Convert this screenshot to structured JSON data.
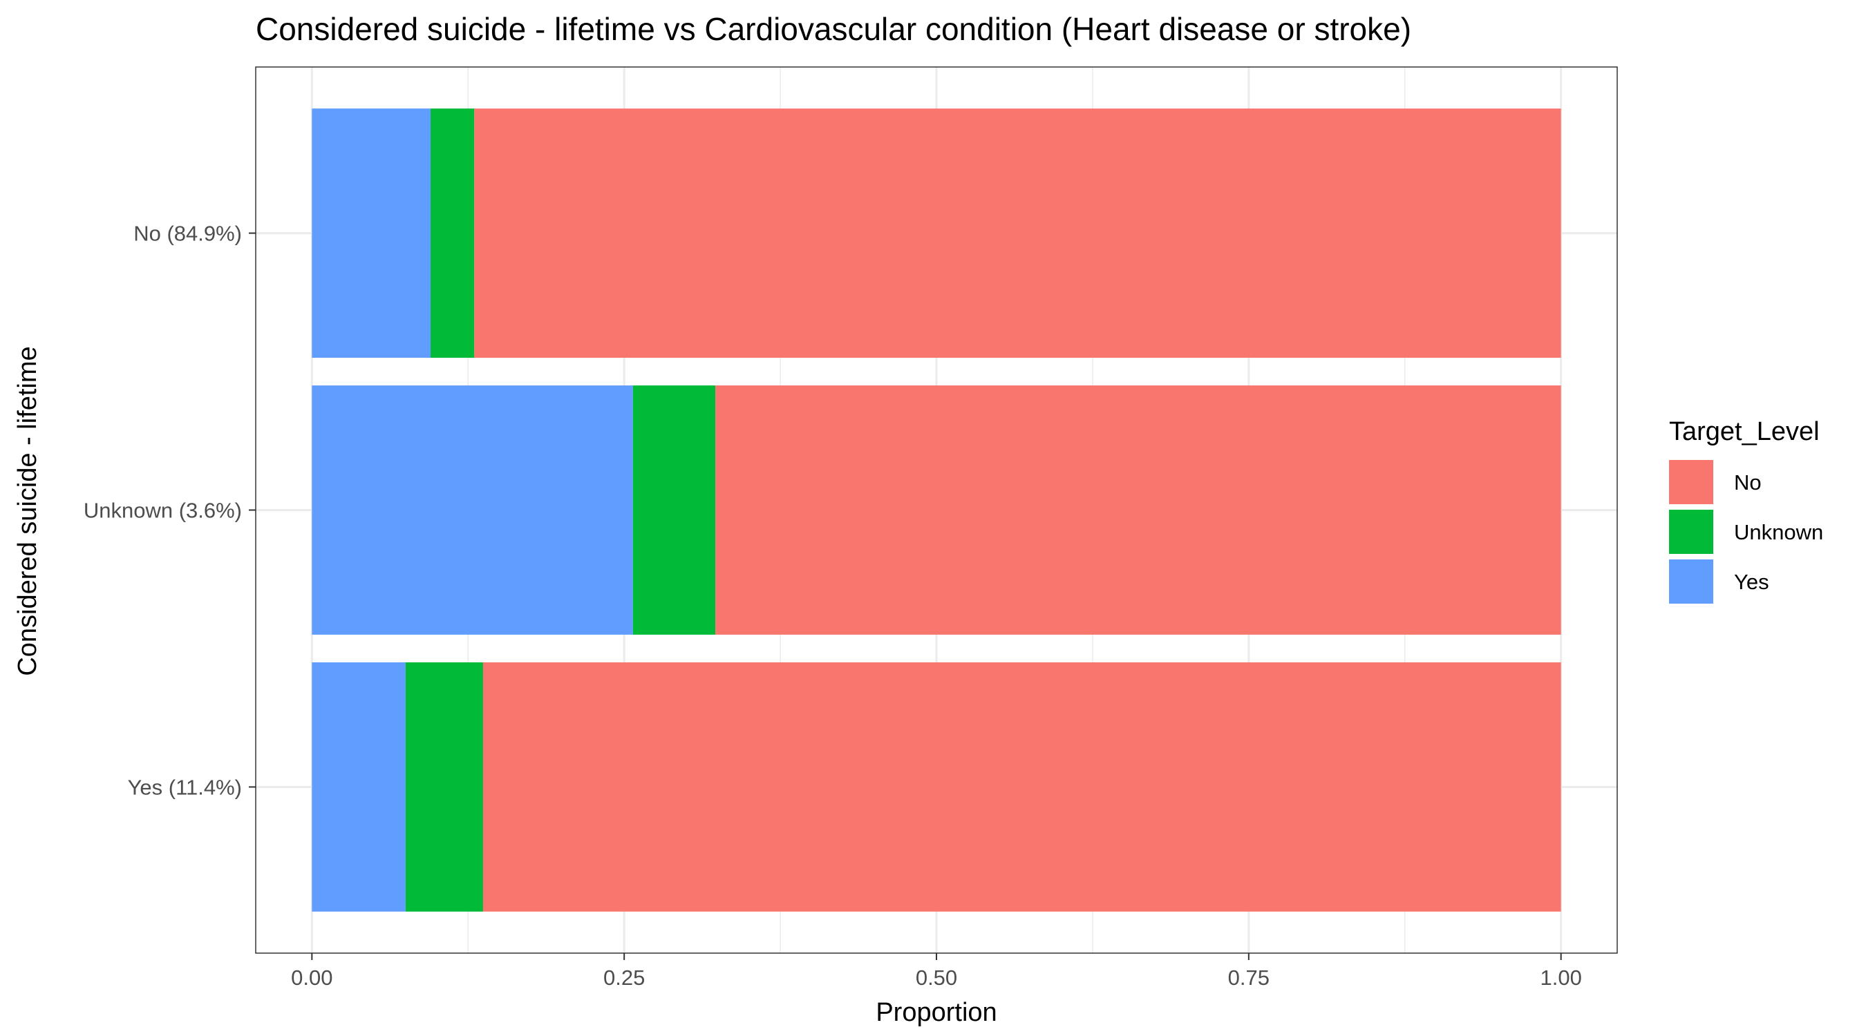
{
  "chart_data": {
    "type": "bar",
    "orientation": "horizontal",
    "stacked": "proportion",
    "title": "Considered suicide - lifetime vs Cardiovascular condition (Heart disease or stroke)",
    "xlabel": "Proportion",
    "ylabel": "Considered suicide - lifetime",
    "xlim": [
      0,
      1
    ],
    "x_ticks": [
      "0.00",
      "0.25",
      "0.50",
      "0.75",
      "1.00"
    ],
    "categories": [
      "Yes (11.4%)",
      "Unknown (3.6%)",
      "No (84.9%)"
    ],
    "series": [
      {
        "name": "Yes",
        "color": "#619CFF",
        "values": [
          0.075,
          0.257,
          0.095
        ]
      },
      {
        "name": "Unknown",
        "color": "#00BA38",
        "values": [
          0.062,
          0.066,
          0.035
        ]
      },
      {
        "name": "No",
        "color": "#F8766D",
        "values": [
          0.863,
          0.677,
          0.87
        ]
      }
    ],
    "legend": {
      "title": "Target_Level",
      "placement": "right",
      "entries": [
        {
          "label": "No",
          "color": "#F8766D"
        },
        {
          "label": "Unknown",
          "color": "#00BA38"
        },
        {
          "label": "Yes",
          "color": "#619CFF"
        }
      ]
    },
    "grid": true
  }
}
